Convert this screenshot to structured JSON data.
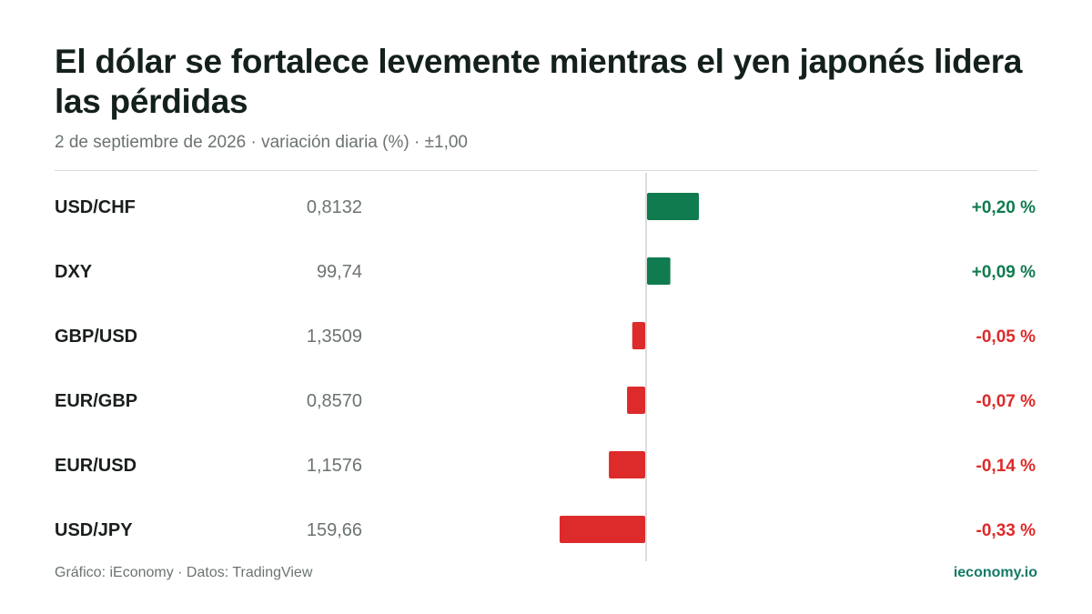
{
  "title": "El dólar se fortalece levemente mientras el yen japonés lidera las pérdidas",
  "subtitle": "2 de septiembre de 2026 · variación diaria (%) · ±1,00",
  "footer": {
    "source": "Gráfico: iEconomy · Datos: TradingView",
    "brand": "ieconomy.io"
  },
  "colors": {
    "positive": "#107b4f",
    "negative": "#dd2a2a",
    "label": "#1a1f1d",
    "price": "#6b7370",
    "axis": "#d0d4d2"
  },
  "chart_data": {
    "type": "bar",
    "orientation": "horizontal",
    "categories": [
      "USD/CHF",
      "DXY",
      "GBP/USD",
      "EUR/GBP",
      "EUR/USD",
      "USD/JPY"
    ],
    "prices": [
      "0,8132",
      "99,74",
      "1,3509",
      "0,8570",
      "1,1576",
      "159,66"
    ],
    "values": [
      0.2,
      0.09,
      -0.05,
      -0.07,
      -0.14,
      -0.33
    ],
    "value_labels": [
      "+0,20 %",
      "+0,09 %",
      "-0,05 %",
      "-0,07 %",
      "-0,14 %",
      "-0,33 %"
    ],
    "xlim": [
      -1,
      1
    ],
    "grid": false
  }
}
